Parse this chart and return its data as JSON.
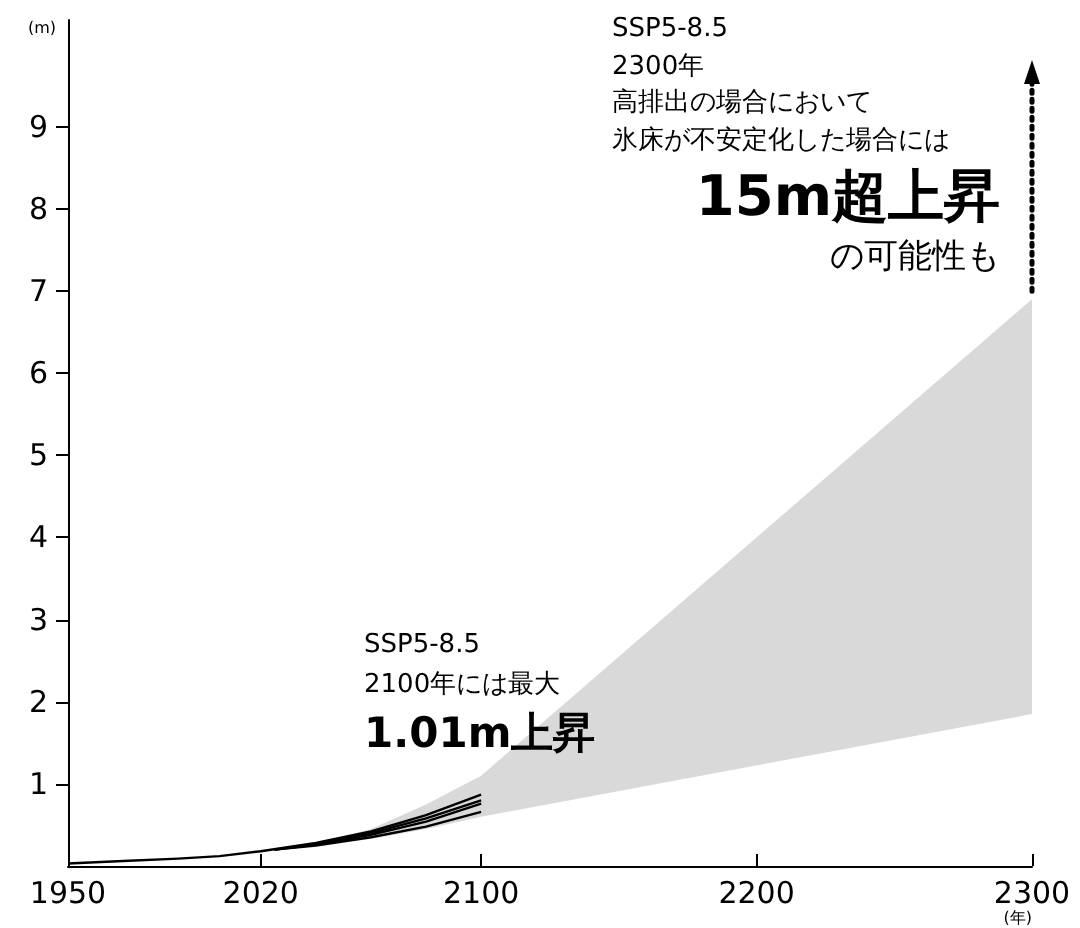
{
  "chart_data": {
    "type": "line",
    "ylabel": "(m)",
    "xlabel": "(年)",
    "xlim": [
      1950,
      2300
    ],
    "xticks": [
      1950,
      2020,
      2100,
      2200,
      2300
    ],
    "ylim": [
      0,
      10.3
    ],
    "yticks": [
      1,
      2,
      3,
      4,
      5,
      6,
      7,
      8,
      9
    ],
    "grid": false,
    "marker": "none",
    "line_style": "solid",
    "series": [
      {
        "type": "area",
        "color": "#d9d9d9",
        "x": [
          2030,
          2045,
          2060,
          2080,
          2100,
          2300
        ],
        "values": [
          null,
          null,
          null,
          null,
          null,
          null
        ],
        "lower": [
          0.2,
          0.27,
          0.33,
          0.45,
          0.6,
          1.85
        ],
        "upper": [
          0.2,
          0.32,
          0.45,
          0.75,
          1.1,
          6.9
        ]
      },
      {
        "color": "#000000",
        "x": [
          1950,
          1970,
          1990,
          2005,
          2020,
          2040,
          2060,
          2080,
          2100
        ],
        "values": [
          0.03,
          0.06,
          0.09,
          0.12,
          0.18,
          0.28,
          0.42,
          0.62,
          0.87
        ]
      },
      {
        "color": "#000000",
        "x": [
          2025,
          2040,
          2060,
          2080,
          2100
        ],
        "values": [
          0.2,
          0.27,
          0.4,
          0.58,
          0.8
        ]
      },
      {
        "color": "#000000",
        "x": [
          2025,
          2040,
          2060,
          2080,
          2100
        ],
        "values": [
          0.2,
          0.26,
          0.38,
          0.54,
          0.76
        ]
      },
      {
        "color": "#000000",
        "x": [
          2025,
          2040,
          2060,
          2080,
          2100
        ],
        "values": [
          0.2,
          0.25,
          0.35,
          0.48,
          0.66
        ]
      }
    ],
    "annotations": [
      "SSP5-8.5",
      "2100年には最大",
      "1.01m上昇",
      "SSP5-8.5",
      "2300年",
      "高排出の場合において",
      "氷床が不安定化した場合には",
      "15m超上昇",
      "の可能性も"
    ]
  }
}
